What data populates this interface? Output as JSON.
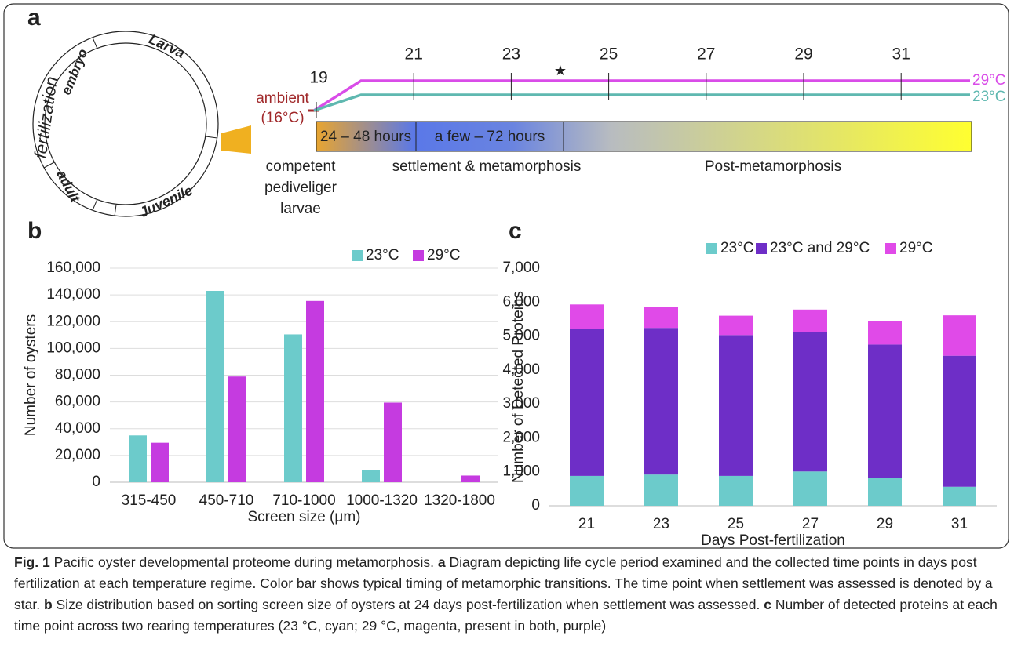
{
  "diagram": {
    "label": "a",
    "ring": [
      "fertilization",
      "embryo",
      "Larva",
      "adult",
      "Juvenile"
    ],
    "days": [
      19,
      21,
      23,
      25,
      27,
      29,
      31
    ],
    "ambient": [
      "ambient",
      "(16°C)"
    ],
    "lines": [
      {
        "name": "29°C",
        "color": "#d94ce8"
      },
      {
        "name": "23°C",
        "color": "#5fb8b0"
      }
    ],
    "bar_boxes": [
      "24 – 48 hours",
      "a few – 72 hours"
    ],
    "stages": [
      [
        "competent",
        "pediveliger",
        "larvae"
      ],
      "settlement & metamorphosis",
      "Post-metamorphosis"
    ]
  },
  "chart_data": [
    {
      "type": "bar",
      "label": "b",
      "x_label": "Screen size (μm)",
      "y_label": "Number of oysters",
      "categories": [
        "315-450",
        "450-710",
        "710-1000",
        "1000-1320",
        "1320-1800"
      ],
      "series": [
        {
          "name": "23°C",
          "color": "#6ccbcb",
          "values": [
            35000,
            143000,
            110500,
            9000,
            0
          ]
        },
        {
          "name": "29°C",
          "color": "#c53be0",
          "values": [
            29500,
            79000,
            135500,
            59500,
            5000
          ]
        }
      ],
      "ylim": [
        0,
        160000
      ],
      "yticks": [
        0,
        {
          "value": 20000,
          "label": "20,000"
        },
        {
          "value": 40000,
          "label": "40,000"
        },
        {
          "value": 60000,
          "label": "60,000"
        },
        {
          "value": 80000,
          "label": "80,000"
        },
        {
          "value": 100000,
          "label": "100,000"
        },
        {
          "value": 120000,
          "label": "120,000"
        },
        {
          "value": 140000,
          "label": "140,000"
        },
        {
          "value": 160000,
          "label": "160,000"
        }
      ],
      "grid": true
    },
    {
      "type": "stacked_bar",
      "label": "c",
      "x_label": "Days Post-fertilization",
      "y_label": "Number of Detected Proteins",
      "categories": [
        "21",
        "23",
        "25",
        "27",
        "29",
        "31"
      ],
      "series": [
        {
          "name": "23°C",
          "color": "#6ccbcb",
          "values": [
            880,
            920,
            880,
            1010,
            810,
            560
          ]
        },
        {
          "name": "23°C and 29°C",
          "color": "#6e2ec7",
          "values": [
            4320,
            4320,
            4150,
            4110,
            3940,
            3860
          ]
        },
        {
          "name": "29°C",
          "color": "#e04ae8",
          "values": [
            730,
            620,
            570,
            660,
            700,
            1190
          ]
        }
      ],
      "ylim": [
        0,
        7000
      ],
      "yticks": [
        0,
        {
          "value": 1000,
          "label": "1,000"
        },
        {
          "value": 2000,
          "label": "2,000"
        },
        {
          "value": 3000,
          "label": "3,000"
        },
        {
          "value": 4000,
          "label": "4,000"
        },
        {
          "value": 5000,
          "label": "5,000"
        },
        {
          "value": 6000,
          "label": "6,000"
        },
        {
          "value": 7000,
          "label": "7,000"
        }
      ],
      "grid": false
    }
  ],
  "caption": [
    {
      "text": "Fig. 1",
      "bold": true
    },
    {
      "text": " Pacific oyster developmental proteome during metamorphosis. ",
      "bold": false
    },
    {
      "text": "a",
      "bold": true
    },
    {
      "text": " Diagram depicting life cycle period examined and the collected time points in days post fertilization at each temperature regime. Color bar shows typical timing of metamorphic transitions. The time point when settlement was assessed is denoted by a star. ",
      "bold": false
    },
    {
      "text": "b",
      "bold": true
    },
    {
      "text": " Size distribution based on sorting screen size of oysters at 24 days post-fertilization when settlement was assessed. ",
      "bold": false
    },
    {
      "text": "c",
      "bold": true
    },
    {
      "text": " Number of detected proteins at each time point across two rearing temperatures (23 °C, cyan; 29 °C, magenta, present in both, purple)",
      "bold": false
    }
  ]
}
